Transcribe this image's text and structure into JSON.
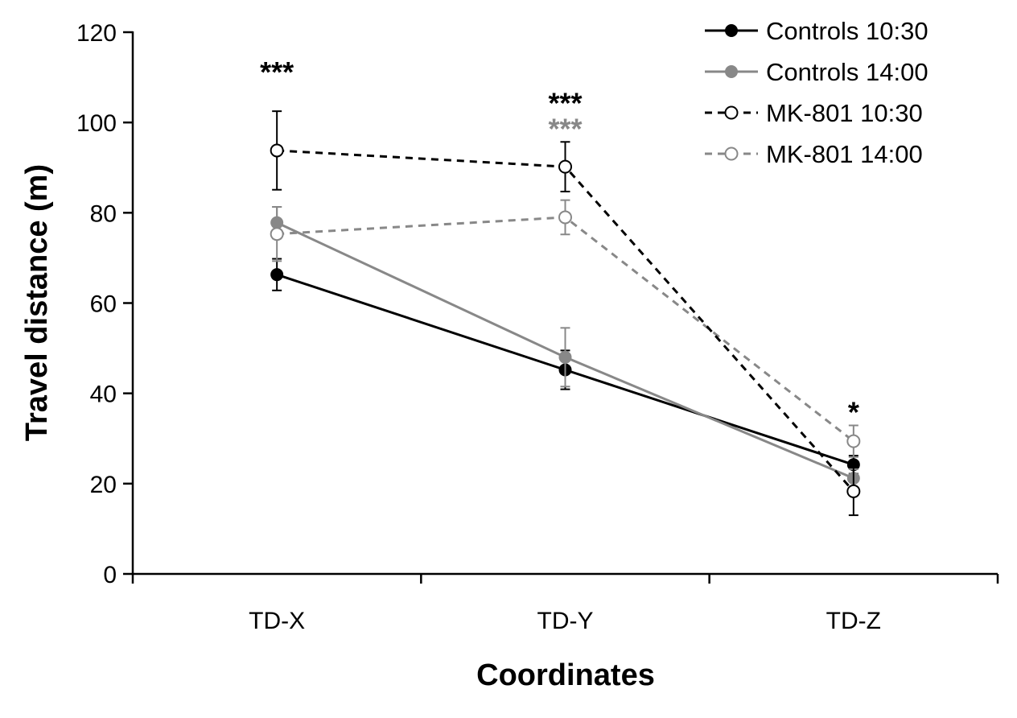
{
  "chart_data": {
    "type": "line",
    "title": "",
    "xlabel": "Coordinates",
    "ylabel": "Travel distance (m)",
    "ylim": [
      0,
      120
    ],
    "yticks": [
      0,
      20,
      40,
      60,
      80,
      100,
      120
    ],
    "grid": false,
    "legend_position": "top-right",
    "categories": [
      "TD-X",
      "TD-Y",
      "TD-Z"
    ],
    "series": [
      {
        "name": "Controls 10:30",
        "values": [
          66.3,
          45.2,
          24.2
        ],
        "errors": [
          3.5,
          4.3,
          2.0
        ],
        "color": "#000000",
        "line": "solid",
        "marker": "filled"
      },
      {
        "name": "Controls 14:00",
        "values": [
          77.8,
          48.0,
          21.2
        ],
        "errors": [
          3.5,
          6.5,
          2.0
        ],
        "color": "#888888",
        "line": "solid",
        "marker": "filled"
      },
      {
        "name": "MK-801 10:30",
        "values": [
          93.8,
          90.2,
          18.3
        ],
        "errors": [
          8.7,
          5.5,
          5.3
        ],
        "color": "#000000",
        "line": "dashed",
        "marker": "open"
      },
      {
        "name": "MK-801 14:00",
        "values": [
          75.3,
          79.0,
          29.4
        ],
        "errors": [
          6.0,
          3.8,
          3.5
        ],
        "color": "#888888",
        "line": "dashed",
        "marker": "open"
      }
    ],
    "annotations": [
      {
        "category": "TD-X",
        "text": "***",
        "color": "#000000",
        "level": 1
      },
      {
        "category": "TD-Y",
        "text": "***",
        "color": "#000000",
        "level": 1
      },
      {
        "category": "TD-Y",
        "text": "***",
        "color": "#888888",
        "level": 0
      },
      {
        "category": "TD-Z",
        "text": "*",
        "color": "#000000",
        "level": 0
      }
    ]
  }
}
